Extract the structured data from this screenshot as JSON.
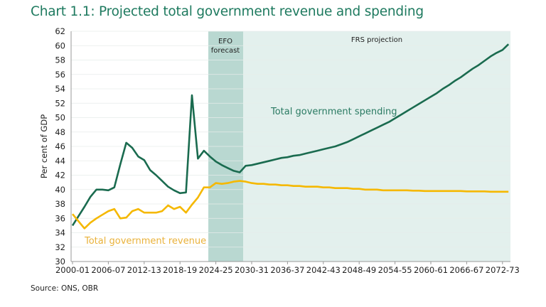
{
  "chart_data": {
    "type": "line",
    "title": "Chart 1.1: Projected total government revenue and spending",
    "source": "Source: ONS, OBR",
    "ylabel": "Per cent of GDP",
    "xlabel": "",
    "ylim": [
      30,
      62
    ],
    "yticks": [
      30,
      32,
      34,
      36,
      38,
      40,
      42,
      44,
      46,
      48,
      50,
      52,
      54,
      56,
      58,
      60,
      62
    ],
    "grid": true,
    "x": [
      "2000-01",
      "2001-02",
      "2002-03",
      "2003-04",
      "2004-05",
      "2005-06",
      "2006-07",
      "2007-08",
      "2008-09",
      "2009-10",
      "2010-11",
      "2011-12",
      "2012-13",
      "2013-14",
      "2014-15",
      "2015-16",
      "2016-17",
      "2017-18",
      "2018-19",
      "2019-20",
      "2020-21",
      "2021-22",
      "2022-23",
      "2023-24",
      "2024-25",
      "2025-26",
      "2026-27",
      "2027-28",
      "2028-29",
      "2029-30",
      "2030-31",
      "2031-32",
      "2032-33",
      "2033-34",
      "2034-35",
      "2035-36",
      "2036-37",
      "2037-38",
      "2038-39",
      "2039-40",
      "2040-41",
      "2041-42",
      "2042-43",
      "2043-44",
      "2044-45",
      "2045-46",
      "2046-47",
      "2047-48",
      "2048-49",
      "2049-50",
      "2050-51",
      "2051-52",
      "2052-53",
      "2053-54",
      "2054-55",
      "2055-56",
      "2056-57",
      "2057-58",
      "2058-59",
      "2059-60",
      "2060-61",
      "2061-62",
      "2062-63",
      "2063-64",
      "2064-65",
      "2065-66",
      "2066-67",
      "2067-68",
      "2068-69",
      "2069-70",
      "2070-71",
      "2071-72",
      "2072-73",
      "2073-74"
    ],
    "xticks": [
      "2000-01",
      "2006-07",
      "2012-13",
      "2018-19",
      "2024-25",
      "2030-31",
      "2036-37",
      "2042-43",
      "2048-49",
      "2054-55",
      "2060-61",
      "2066-67",
      "2072-73"
    ],
    "series": [
      {
        "name": "Total government spending",
        "color": "#1a6b4f",
        "values": [
          35.0,
          36.3,
          37.6,
          39.0,
          40.0,
          40.0,
          39.9,
          40.3,
          43.5,
          46.5,
          45.8,
          44.6,
          44.1,
          42.7,
          42.0,
          41.2,
          40.4,
          39.9,
          39.5,
          39.6,
          53.1,
          44.3,
          45.4,
          44.6,
          43.9,
          43.4,
          43.0,
          42.6,
          42.4,
          43.3,
          43.4,
          43.6,
          43.8,
          44.0,
          44.2,
          44.4,
          44.5,
          44.7,
          44.8,
          45.0,
          45.2,
          45.4,
          45.6,
          45.8,
          46.0,
          46.3,
          46.6,
          47.0,
          47.4,
          47.8,
          48.2,
          48.6,
          49.0,
          49.4,
          49.9,
          50.4,
          50.9,
          51.4,
          51.9,
          52.4,
          52.9,
          53.4,
          54.0,
          54.5,
          55.1,
          55.6,
          56.2,
          56.8,
          57.3,
          57.9,
          58.5,
          59.0,
          59.4,
          60.2
        ]
      },
      {
        "name": "Total government revenue",
        "color": "#f5b800",
        "values": [
          36.6,
          35.6,
          34.6,
          35.4,
          36.0,
          36.5,
          37.0,
          37.3,
          36.0,
          36.1,
          37.0,
          37.3,
          36.8,
          36.8,
          36.8,
          37.0,
          37.8,
          37.3,
          37.6,
          36.8,
          37.9,
          38.9,
          40.3,
          40.3,
          40.9,
          40.8,
          40.9,
          41.1,
          41.2,
          41.1,
          40.9,
          40.8,
          40.8,
          40.7,
          40.7,
          40.6,
          40.6,
          40.5,
          40.5,
          40.4,
          40.4,
          40.4,
          40.3,
          40.3,
          40.2,
          40.2,
          40.2,
          40.1,
          40.1,
          40.0,
          40.0,
          40.0,
          39.9,
          39.9,
          39.9,
          39.9,
          39.9,
          39.85,
          39.85,
          39.8,
          39.8,
          39.8,
          39.8,
          39.8,
          39.8,
          39.8,
          39.75,
          39.75,
          39.75,
          39.75,
          39.7,
          39.7,
          39.7,
          39.7
        ]
      }
    ],
    "bands": [
      {
        "label_line1": "EFO",
        "label_line2": "forecast",
        "from": "2022-23",
        "to": "2028-29",
        "color": "#b9d8d1"
      },
      {
        "label_line1": "FRS projection",
        "label_line2": "",
        "from": "2028-29",
        "to": "2073-74",
        "color": "#e3f0ed"
      }
    ]
  }
}
